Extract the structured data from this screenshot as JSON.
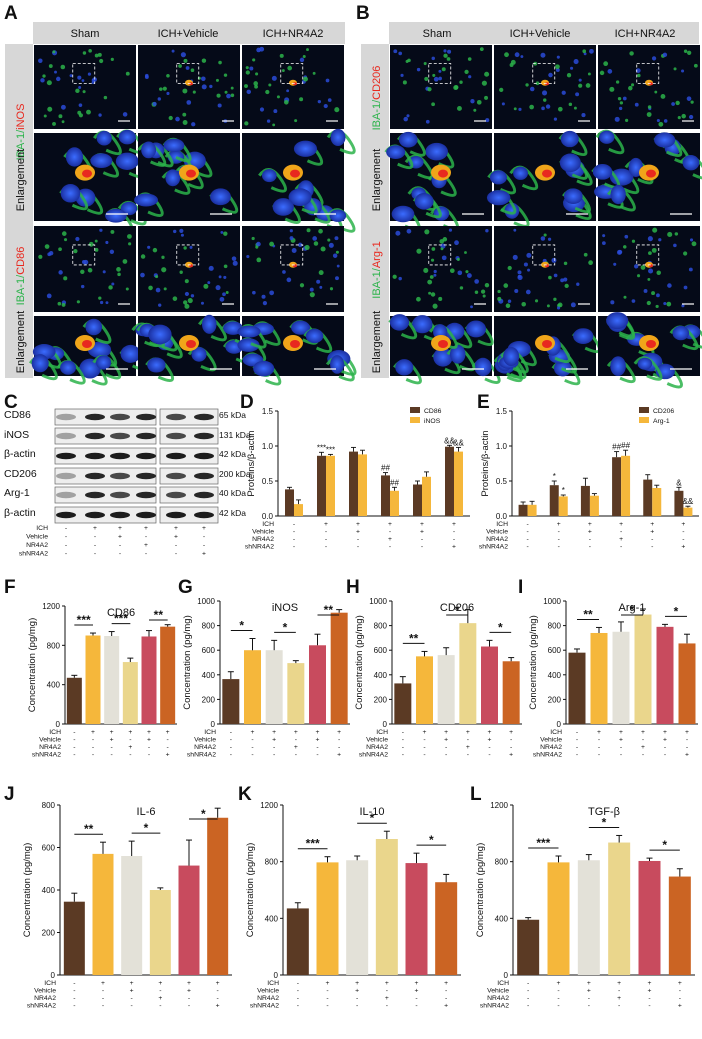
{
  "colors": {
    "sham": "#5b3a24",
    "vehicle_dark": "#f5b73b",
    "vehicle_light": "#e3e1d8",
    "nr4a2": "#ead68c",
    "nr4a2_vehicle": "#c84b5e",
    "shnr4a2": "#cb6423",
    "iba1_green": "#2bb34a",
    "marker_red": "#e8291f"
  },
  "panels": {
    "A": "A",
    "B": "B",
    "C": "C",
    "D": "D",
    "E": "E",
    "F": "F",
    "G": "G",
    "H": "H",
    "I": "I",
    "J": "J",
    "K": "K",
    "L": "L"
  },
  "microscopy": {
    "groups": [
      "Sham",
      "ICH+Vehicle",
      "ICH+NR4A2"
    ],
    "enlargement": "Enlargement",
    "A_top": {
      "green": "IBA-1/",
      "red": "iNOS"
    },
    "A_bottom": {
      "green": "IBA-1/",
      "red": "CD86"
    },
    "B_top": {
      "green": "IBA-1/",
      "red": "CD206"
    },
    "B_bottom": {
      "green": "IBA-1/",
      "red": "Arg-1"
    }
  },
  "western": {
    "bands": [
      {
        "name": "CD86",
        "kda": "65 kDa"
      },
      {
        "name": "iNOS",
        "kda": "131 kDa"
      },
      {
        "name": "β-actin",
        "kda": "42 kDa"
      },
      {
        "name": "CD206",
        "kda": "200 kDa"
      },
      {
        "name": "Arg-1",
        "kda": "40 kDa"
      },
      {
        "name": "β-actin",
        "kda": "42 kDa"
      }
    ],
    "conditions": {
      "labels": [
        "ICH",
        "Vehicle",
        "NR4A2",
        "shNR4A2"
      ],
      "rows": [
        [
          "-",
          "+",
          "+",
          "+",
          "+",
          "+"
        ],
        [
          "-",
          "-",
          "+",
          "-",
          "+",
          "-"
        ],
        [
          "-",
          "-",
          "-",
          "+",
          "-",
          "-"
        ],
        [
          "-",
          "-",
          "-",
          "-",
          "-",
          "+"
        ]
      ]
    }
  },
  "chart_data": [
    {
      "panel": "D",
      "type": "bar",
      "ylabel": "Proteins/β-actin",
      "ylim": [
        0,
        1.5
      ],
      "yticks": [
        "0.0",
        "0.5",
        "1.0",
        "1.5"
      ],
      "legend_position": "top-right",
      "series": [
        {
          "name": "CD86",
          "values": [
            0.38,
            0.86,
            0.92,
            0.58,
            0.45,
            0.99
          ],
          "errors": [
            0.03,
            0.05,
            0.06,
            0.04,
            0.05,
            0.02
          ]
        },
        {
          "name": "iNOS",
          "values": [
            0.17,
            0.86,
            0.88,
            0.36,
            0.56,
            0.92
          ],
          "errors": [
            0.06,
            0.02,
            0.06,
            0.05,
            0.07,
            0.06
          ]
        }
      ],
      "annotations": [
        {
          "group": 1,
          "text": "***",
          "s": 0
        },
        {
          "group": 1,
          "text": "***",
          "s": 1
        },
        {
          "group": 3,
          "text": "##",
          "s": 0
        },
        {
          "group": 3,
          "text": "##",
          "s": 1
        },
        {
          "group": 5,
          "text": "&&",
          "s": 0
        },
        {
          "group": 5,
          "text": "&&",
          "s": 1
        }
      ],
      "conditions": {
        "labels": [
          "ICH",
          "Vehicle",
          "NR4A2",
          "shNR4A2"
        ],
        "rows": [
          [
            "-",
            "+",
            "+",
            "+",
            "+",
            "+"
          ],
          [
            "-",
            "-",
            "+",
            "-",
            "+",
            "-"
          ],
          [
            "-",
            "-",
            "-",
            "+",
            "-",
            "-"
          ],
          [
            "-",
            "-",
            "-",
            "-",
            "-",
            "+"
          ]
        ]
      }
    },
    {
      "panel": "E",
      "type": "bar",
      "ylabel": "Proteins/β-actin",
      "ylim": [
        0,
        1.5
      ],
      "yticks": [
        "0.0",
        "0.5",
        "1.0",
        "1.5"
      ],
      "legend_position": "top-right",
      "series": [
        {
          "name": "CD206",
          "values": [
            0.16,
            0.44,
            0.43,
            0.84,
            0.52,
            0.36
          ],
          "errors": [
            0.04,
            0.06,
            0.11,
            0.08,
            0.07,
            0.05
          ]
        },
        {
          "name": "Arg-1",
          "values": [
            0.16,
            0.28,
            0.29,
            0.86,
            0.4,
            0.12
          ],
          "errors": [
            0.05,
            0.02,
            0.03,
            0.08,
            0.04,
            0.02
          ]
        }
      ],
      "annotations": [
        {
          "group": 1,
          "text": "*",
          "s": 0
        },
        {
          "group": 1,
          "text": "*",
          "s": 1
        },
        {
          "group": 3,
          "text": "##",
          "s": 0
        },
        {
          "group": 3,
          "text": "##",
          "s": 1
        },
        {
          "group": 5,
          "text": "&",
          "s": 0
        },
        {
          "group": 5,
          "text": "&&",
          "s": 1
        }
      ],
      "conditions": {
        "labels": [
          "ICH",
          "Vehicle",
          "NR4A2",
          "shNR4A2"
        ],
        "rows": [
          [
            "-",
            "+",
            "+",
            "+",
            "+",
            "+"
          ],
          [
            "-",
            "-",
            "+",
            "-",
            "+",
            "-"
          ],
          [
            "-",
            "-",
            "-",
            "+",
            "-",
            "-"
          ],
          [
            "-",
            "-",
            "-",
            "-",
            "-",
            "+"
          ]
        ]
      }
    },
    {
      "panel": "F",
      "type": "bar",
      "title": "CD86",
      "ylabel": "Concentration (pg/mg)",
      "ylim": [
        0,
        1200
      ],
      "yticks": [
        "0",
        "400",
        "800",
        "1200"
      ],
      "values": [
        470,
        900,
        895,
        630,
        890,
        990
      ],
      "errors": [
        25,
        25,
        45,
        40,
        60,
        20
      ],
      "sig": [
        {
          "from": 0,
          "to": 1,
          "text": "***"
        },
        {
          "from": 2,
          "to": 3,
          "text": "***"
        },
        {
          "from": 4,
          "to": 5,
          "text": "**"
        }
      ],
      "conditions": {
        "labels": [
          "ICH",
          "Vehicle",
          "NR4A2",
          "shNR4A2"
        ],
        "rows": [
          [
            "-",
            "+",
            "+",
            "+",
            "+",
            "+"
          ],
          [
            "-",
            "-",
            "+",
            "-",
            "+",
            "-"
          ],
          [
            "-",
            "-",
            "-",
            "+",
            "-",
            "-"
          ],
          [
            "-",
            "-",
            "-",
            "-",
            "-",
            "+"
          ]
        ]
      }
    },
    {
      "panel": "G",
      "type": "bar",
      "title": "iNOS",
      "ylabel": "Concentration (pg/mg)",
      "ylim": [
        0,
        1000
      ],
      "yticks": [
        "0",
        "200",
        "400",
        "600",
        "800",
        "1000"
      ],
      "values": [
        365,
        600,
        600,
        495,
        640,
        905
      ],
      "errors": [
        60,
        95,
        80,
        20,
        90,
        25
      ],
      "sig": [
        {
          "from": 0,
          "to": 1,
          "text": "*"
        },
        {
          "from": 2,
          "to": 3,
          "text": "*"
        },
        {
          "from": 4,
          "to": 5,
          "text": "**"
        }
      ],
      "conditions": {
        "labels": [
          "ICH",
          "Vehicle",
          "NR4A2",
          "shNR4A2"
        ],
        "rows": [
          [
            "-",
            "+",
            "+",
            "+",
            "+",
            "+"
          ],
          [
            "-",
            "-",
            "+",
            "-",
            "+",
            "-"
          ],
          [
            "-",
            "-",
            "-",
            "+",
            "-",
            "-"
          ],
          [
            "-",
            "-",
            "-",
            "-",
            "-",
            "+"
          ]
        ]
      }
    },
    {
      "panel": "H",
      "type": "bar",
      "title": "CD206",
      "ylabel": "Concentration (pg/mg)",
      "ylim": [
        0,
        1000
      ],
      "yticks": [
        "0",
        "200",
        "400",
        "600",
        "800",
        "1000"
      ],
      "values": [
        330,
        550,
        560,
        820,
        630,
        510
      ],
      "errors": [
        55,
        40,
        60,
        110,
        50,
        30
      ],
      "sig": [
        {
          "from": 0,
          "to": 1,
          "text": "**"
        },
        {
          "from": 2,
          "to": 3,
          "text": "*"
        },
        {
          "from": 4,
          "to": 5,
          "text": "*"
        }
      ],
      "conditions": {
        "labels": [
          "ICH",
          "Vehicle",
          "NR4A2",
          "shNR4A2"
        ],
        "rows": [
          [
            "-",
            "+",
            "+",
            "+",
            "+",
            "+"
          ],
          [
            "-",
            "-",
            "+",
            "-",
            "+",
            "-"
          ],
          [
            "-",
            "-",
            "-",
            "+",
            "-",
            "-"
          ],
          [
            "-",
            "-",
            "-",
            "-",
            "-",
            "+"
          ]
        ]
      }
    },
    {
      "panel": "I",
      "type": "bar",
      "title": "Arg-1",
      "ylabel": "Concentration (pg/mg)",
      "ylim": [
        0,
        1000
      ],
      "yticks": [
        "0",
        "200",
        "400",
        "600",
        "800",
        "1000"
      ],
      "values": [
        580,
        740,
        750,
        890,
        790,
        655
      ],
      "errors": [
        30,
        45,
        80,
        45,
        20,
        75
      ],
      "sig": [
        {
          "from": 0,
          "to": 1,
          "text": "**"
        },
        {
          "from": 2,
          "to": 3,
          "text": "*"
        },
        {
          "from": 4,
          "to": 5,
          "text": "*"
        }
      ],
      "conditions": {
        "labels": [
          "ICH",
          "Vehicle",
          "NR4A2",
          "shNR4A2"
        ],
        "rows": [
          [
            "-",
            "+",
            "+",
            "+",
            "+",
            "+"
          ],
          [
            "-",
            "-",
            "+",
            "-",
            "+",
            "-"
          ],
          [
            "-",
            "-",
            "-",
            "+",
            "-",
            "-"
          ],
          [
            "-",
            "-",
            "-",
            "-",
            "-",
            "+"
          ]
        ]
      }
    },
    {
      "panel": "J",
      "type": "bar",
      "title": "IL-6",
      "ylabel": "Concentration (pg/mg)",
      "ylim": [
        0,
        800
      ],
      "yticks": [
        "0",
        "200",
        "400",
        "600",
        "800"
      ],
      "values": [
        345,
        570,
        560,
        400,
        515,
        740
      ],
      "errors": [
        40,
        55,
        70,
        10,
        120,
        45
      ],
      "sig": [
        {
          "from": 0,
          "to": 1,
          "text": "**"
        },
        {
          "from": 2,
          "to": 3,
          "text": "*"
        },
        {
          "from": 4,
          "to": 5,
          "text": "*"
        }
      ],
      "conditions": {
        "labels": [
          "ICH",
          "Vehicle",
          "NR4A2",
          "shNR4A2"
        ],
        "rows": [
          [
            "-",
            "+",
            "+",
            "+",
            "+",
            "+"
          ],
          [
            "-",
            "-",
            "+",
            "-",
            "+",
            "-"
          ],
          [
            "-",
            "-",
            "-",
            "+",
            "-",
            "-"
          ],
          [
            "-",
            "-",
            "-",
            "-",
            "-",
            "+"
          ]
        ]
      }
    },
    {
      "panel": "K",
      "type": "bar",
      "title": "IL-10",
      "ylabel": "Concentration (pg/mg)",
      "ylim": [
        0,
        1200
      ],
      "yticks": [
        "0",
        "400",
        "800",
        "1200"
      ],
      "values": [
        470,
        795,
        810,
        960,
        790,
        655
      ],
      "errors": [
        40,
        40,
        30,
        55,
        70,
        55
      ],
      "sig": [
        {
          "from": 0,
          "to": 1,
          "text": "***"
        },
        {
          "from": 2,
          "to": 3,
          "text": "*"
        },
        {
          "from": 4,
          "to": 5,
          "text": "*"
        }
      ],
      "conditions": {
        "labels": [
          "ICH",
          "Vehicle",
          "NR4A2",
          "shNR4A2"
        ],
        "rows": [
          [
            "-",
            "+",
            "+",
            "+",
            "+",
            "+"
          ],
          [
            "-",
            "-",
            "+",
            "-",
            "+",
            "-"
          ],
          [
            "-",
            "-",
            "-",
            "+",
            "-",
            "-"
          ],
          [
            "-",
            "-",
            "-",
            "-",
            "-",
            "+"
          ]
        ]
      }
    },
    {
      "panel": "L",
      "type": "bar",
      "title": "TGF-β",
      "ylabel": "Concentration (pg/mg)",
      "ylim": [
        0,
        1200
      ],
      "yticks": [
        "0",
        "400",
        "800",
        "1200"
      ],
      "values": [
        390,
        795,
        810,
        935,
        805,
        695
      ],
      "errors": [
        15,
        45,
        40,
        50,
        20,
        55
      ],
      "sig": [
        {
          "from": 0,
          "to": 1,
          "text": "***"
        },
        {
          "from": 2,
          "to": 3,
          "text": "*"
        },
        {
          "from": 4,
          "to": 5,
          "text": "*"
        }
      ],
      "conditions": {
        "labels": [
          "ICH",
          "Vehicle",
          "NR4A2",
          "shNR4A2"
        ],
        "rows": [
          [
            "-",
            "+",
            "+",
            "+",
            "+",
            "+"
          ],
          [
            "-",
            "-",
            "+",
            "-",
            "+",
            "-"
          ],
          [
            "-",
            "-",
            "-",
            "+",
            "-",
            "-"
          ],
          [
            "-",
            "-",
            "-",
            "-",
            "-",
            "+"
          ]
        ]
      }
    }
  ]
}
